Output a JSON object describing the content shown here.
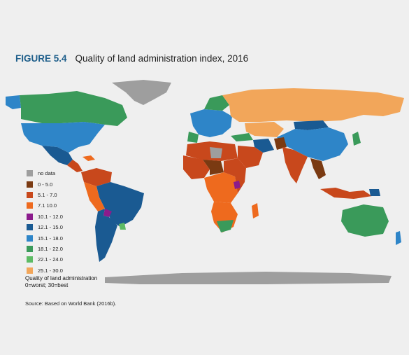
{
  "figure": {
    "number": "FIGURE 5.4",
    "title": "Quality of land administration index, 2016"
  },
  "legend": {
    "items": [
      {
        "label": "no data",
        "color": "#9e9e9e"
      },
      {
        "label": "0 - 5.0",
        "color": "#7a3a12"
      },
      {
        "label": "5.1 - 7.0",
        "color": "#c8481c"
      },
      {
        "label": "7.1 10.0",
        "color": "#ee6a1e"
      },
      {
        "label": "10.1 - 12.0",
        "color": "#8b1b8c"
      },
      {
        "label": "12.1 - 15.0",
        "color": "#1a5a92"
      },
      {
        "label": "15.1 - 18.0",
        "color": "#2e85c8"
      },
      {
        "label": "18.1 - 22.0",
        "color": "#3a9a5a"
      },
      {
        "label": "22.1 - 24.0",
        "color": "#5dbb64"
      },
      {
        "label": "25.1 - 30.0",
        "color": "#f2a65a"
      }
    ]
  },
  "caption": {
    "line1": "Quality of land administration",
    "line2": "0=worst;  30=best"
  },
  "source": "Source: Based on World Bank (2016b)."
}
